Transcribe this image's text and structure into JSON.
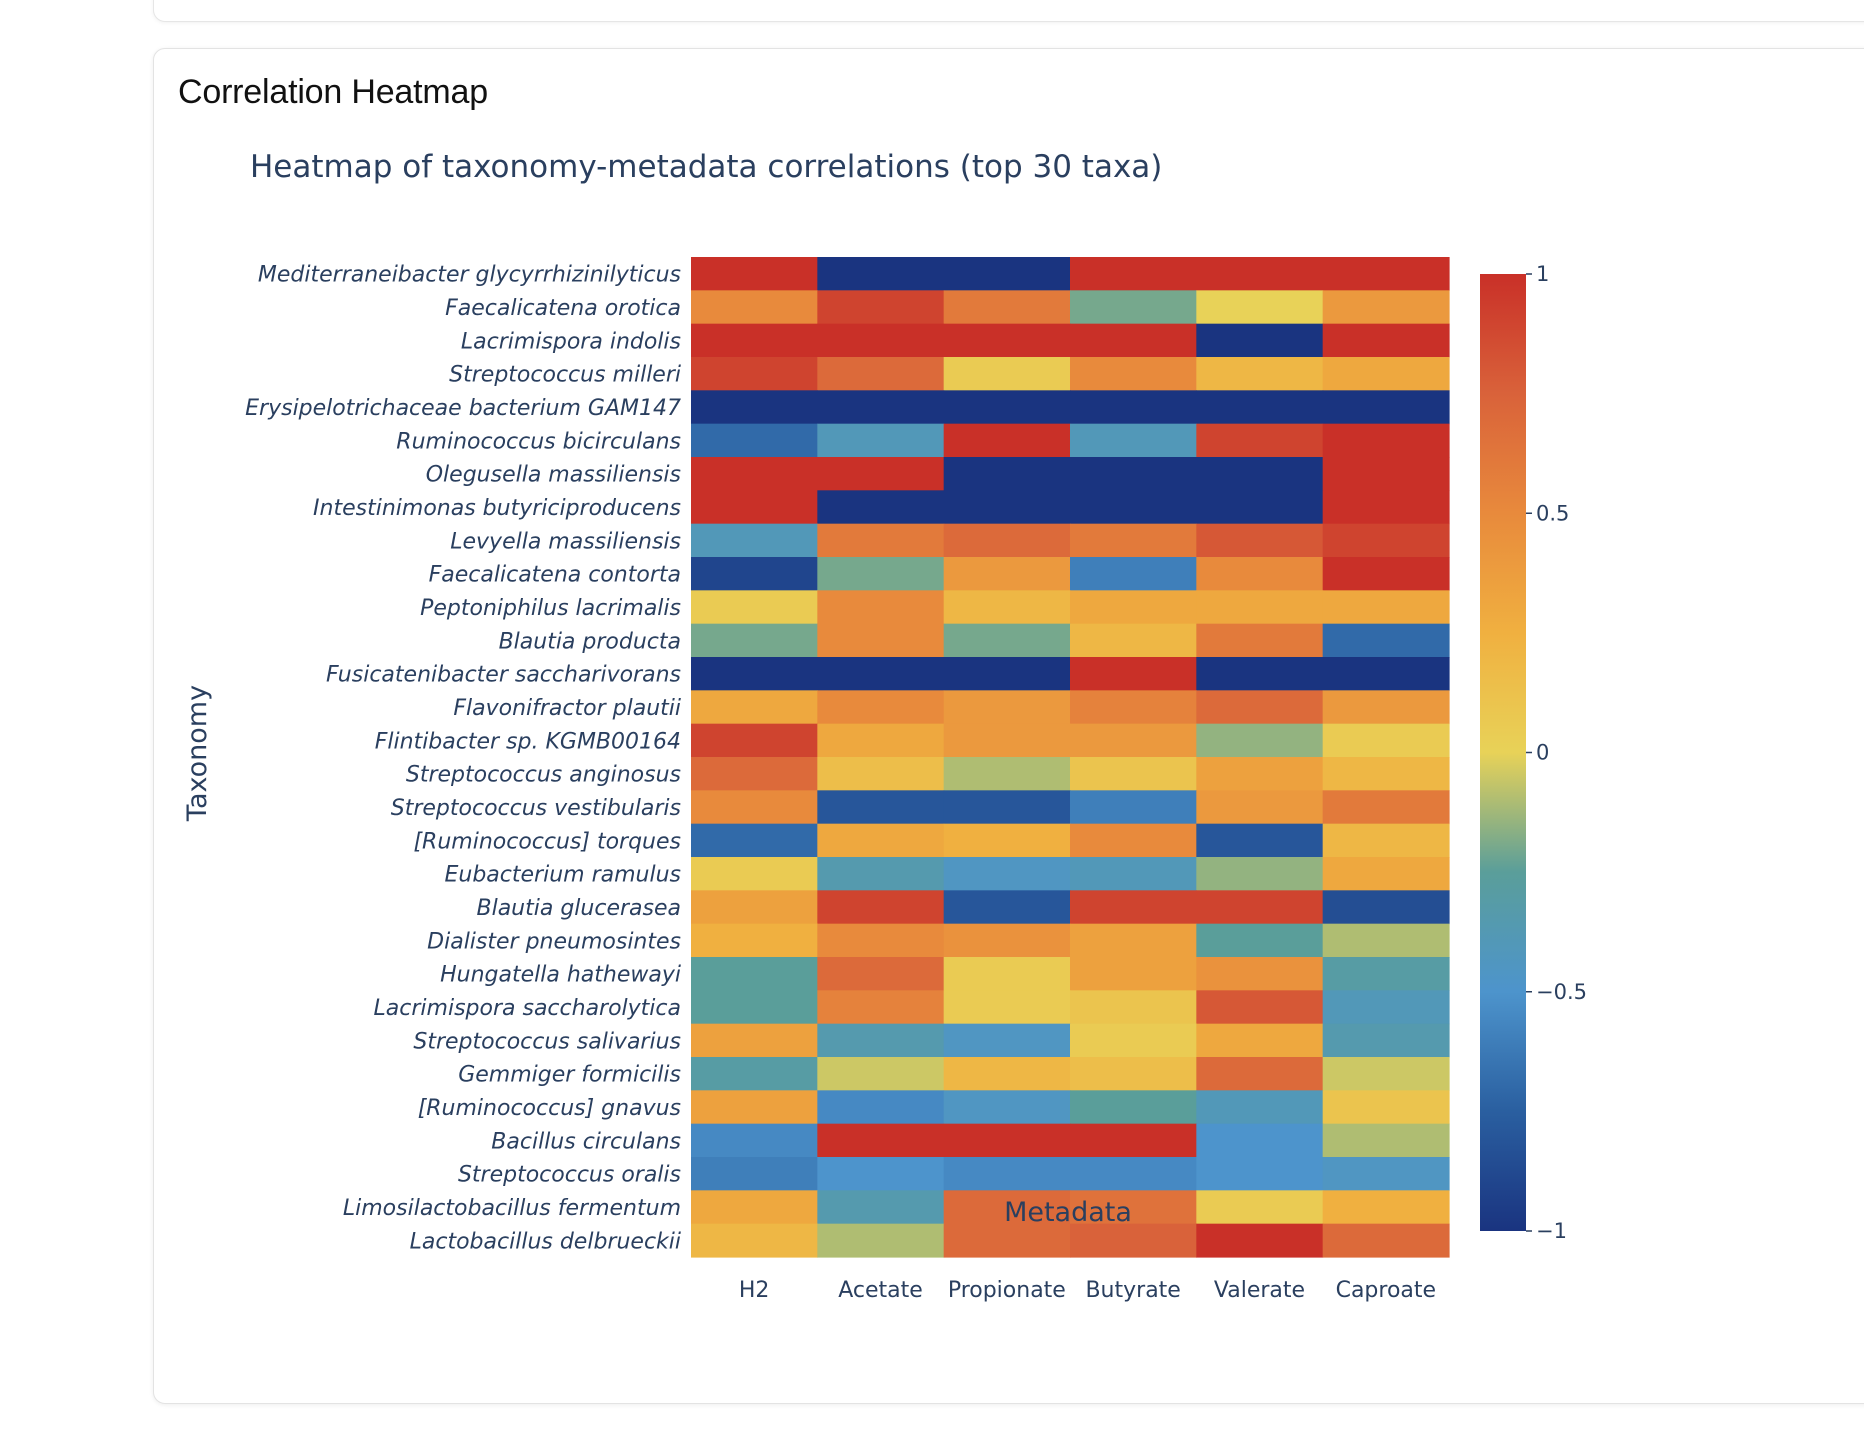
{
  "card": {
    "title": "Correlation Heatmap"
  },
  "chart_data": {
    "type": "heatmap",
    "title": "Heatmap of taxonomy-metadata correlations (top 30 taxa)",
    "xlabel": "Metadata",
    "ylabel": "Taxonomy",
    "x": [
      "H2",
      "Acetate",
      "Propionate",
      "Butyrate",
      "Valerate",
      "Caproate"
    ],
    "y": [
      "Mediterraneibacter glycyrrhizinilyticus",
      "Faecalicatena orotica",
      "Lacrimispora indolis",
      "Streptococcus milleri",
      "Erysipelotrichaceae bacterium GAM147",
      "Ruminococcus bicirculans",
      "Olegusella massiliensis",
      "Intestinimonas butyriciproducens",
      "Levyella massiliensis",
      "Faecalicatena contorta",
      "Peptoniphilus lacrimalis",
      "Blautia producta",
      "Fusicatenibacter saccharivorans",
      "Flavonifractor plautii",
      "Flintibacter sp. KGMB00164",
      "Streptococcus anginosus",
      "Streptococcus vestibularis",
      "[Ruminococcus] torques",
      "Eubacterium ramulus",
      "Blautia glucerasea",
      "Dialister pneumosintes",
      "Hungatella hathewayi",
      "Lacrimispora saccharolytica",
      "Streptococcus salivarius",
      "Gemmiger formicilis",
      "[Ruminococcus] gnavus",
      "Bacillus circulans",
      "Streptococcus oralis",
      "Limosilactobacillus fermentum",
      "Lactobacillus delbrueckii"
    ],
    "z": [
      [
        1.0,
        -1.0,
        -1.0,
        1.0,
        1.0,
        1.0
      ],
      [
        0.5,
        0.9,
        0.6,
        -0.2,
        0.0,
        0.4
      ],
      [
        1.0,
        1.0,
        1.0,
        1.0,
        -1.0,
        1.0
      ],
      [
        0.9,
        0.7,
        0.05,
        0.5,
        0.2,
        0.3
      ],
      [
        -1.0,
        -1.0,
        -1.0,
        -1.0,
        -1.0,
        -1.0
      ],
      [
        -0.7,
        -0.4,
        1.0,
        -0.4,
        0.9,
        1.0
      ],
      [
        1.0,
        1.0,
        -1.0,
        -1.0,
        -1.0,
        1.0
      ],
      [
        1.0,
        -1.0,
        -1.0,
        -1.0,
        -1.0,
        1.0
      ],
      [
        -0.4,
        0.6,
        0.7,
        0.6,
        0.8,
        0.9
      ],
      [
        -0.9,
        -0.2,
        0.4,
        -0.6,
        0.5,
        1.0
      ],
      [
        0.05,
        0.5,
        0.2,
        0.3,
        0.3,
        0.3
      ],
      [
        -0.2,
        0.5,
        -0.2,
        0.2,
        0.6,
        -0.7
      ],
      [
        -1.0,
        -1.0,
        -1.0,
        1.0,
        -1.0,
        -1.0
      ],
      [
        0.3,
        0.5,
        0.4,
        0.55,
        0.7,
        0.4
      ],
      [
        0.9,
        0.3,
        0.4,
        0.4,
        -0.15,
        0.05
      ],
      [
        0.7,
        0.15,
        -0.1,
        0.1,
        0.35,
        0.2
      ],
      [
        0.5,
        -0.8,
        -0.8,
        -0.6,
        0.4,
        0.6
      ],
      [
        -0.7,
        0.3,
        0.25,
        0.5,
        -0.8,
        0.2
      ],
      [
        0.05,
        -0.35,
        -0.45,
        -0.4,
        -0.15,
        0.3
      ],
      [
        0.35,
        0.9,
        -0.8,
        0.9,
        0.9,
        -0.85
      ],
      [
        0.25,
        0.5,
        0.45,
        0.35,
        -0.25,
        -0.1
      ],
      [
        -0.25,
        0.7,
        0.05,
        0.35,
        0.45,
        -0.3
      ],
      [
        -0.25,
        0.55,
        0.05,
        0.1,
        0.8,
        -0.4
      ],
      [
        0.35,
        -0.35,
        -0.45,
        0.05,
        0.3,
        -0.35
      ],
      [
        -0.3,
        -0.05,
        0.2,
        0.15,
        0.7,
        -0.05
      ],
      [
        0.35,
        -0.55,
        -0.45,
        -0.25,
        -0.4,
        0.1
      ],
      [
        -0.55,
        1.0,
        1.0,
        1.0,
        -0.5,
        -0.1
      ],
      [
        -0.6,
        -0.5,
        -0.55,
        -0.55,
        -0.5,
        -0.45
      ],
      [
        0.3,
        -0.35,
        0.7,
        0.65,
        0.05,
        0.25
      ],
      [
        0.2,
        -0.1,
        0.7,
        0.75,
        1.0,
        0.7
      ]
    ],
    "zlim": [
      -1,
      1
    ],
    "colorbar": {
      "ticks": [
        1,
        0.5,
        0,
        -0.5,
        -1
      ],
      "tick_labels": [
        "1",
        "0.5",
        "0",
        "−0.5",
        "−1"
      ]
    },
    "colorscale": [
      [
        0.0,
        "#1a3480"
      ],
      [
        0.125,
        "#2a5fa0"
      ],
      [
        0.25,
        "#4d94cc"
      ],
      [
        0.375,
        "#5a9e9a"
      ],
      [
        0.5,
        "#e8d258"
      ],
      [
        0.625,
        "#f0b040"
      ],
      [
        0.75,
        "#e88a3c"
      ],
      [
        0.875,
        "#d9623a"
      ],
      [
        1.0,
        "#c93028"
      ]
    ]
  }
}
